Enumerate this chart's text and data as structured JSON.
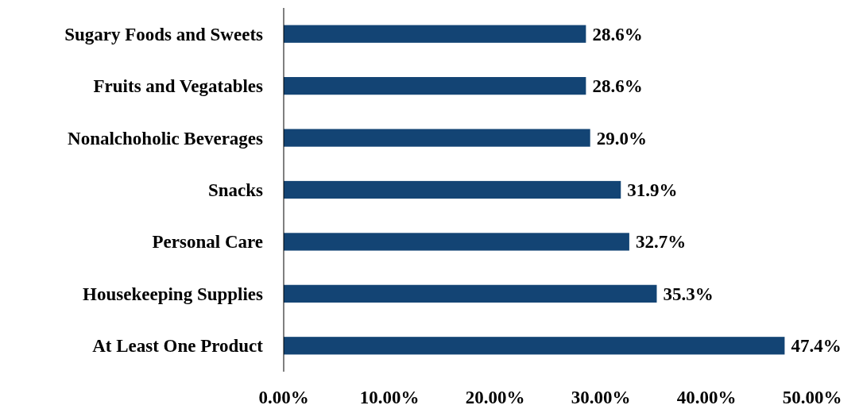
{
  "chart_data": {
    "type": "bar",
    "orientation": "horizontal",
    "categories": [
      "Sugary Foods and Sweets",
      "Fruits and Vegatables",
      "Nonalchoholic Beverages",
      "Snacks",
      "Personal Care",
      "Housekeeping Supplies",
      "At Least One Product"
    ],
    "values": [
      28.6,
      28.6,
      29.0,
      31.9,
      32.7,
      35.3,
      47.4
    ],
    "value_labels": [
      "28.6%",
      "28.6%",
      "29.0%",
      "31.9%",
      "32.7%",
      "35.3%",
      "47.4%"
    ],
    "color": "#134474",
    "xlim": [
      0,
      50
    ],
    "xticks": [
      {
        "value": 0,
        "label": "0.00%"
      },
      {
        "value": 10,
        "label": "10.00%"
      },
      {
        "value": 20,
        "label": "20.00%"
      },
      {
        "value": 30,
        "label": "30.00%"
      },
      {
        "value": 40,
        "label": "40.00%"
      },
      {
        "value": 50,
        "label": "50.00%"
      }
    ],
    "grid": false
  }
}
